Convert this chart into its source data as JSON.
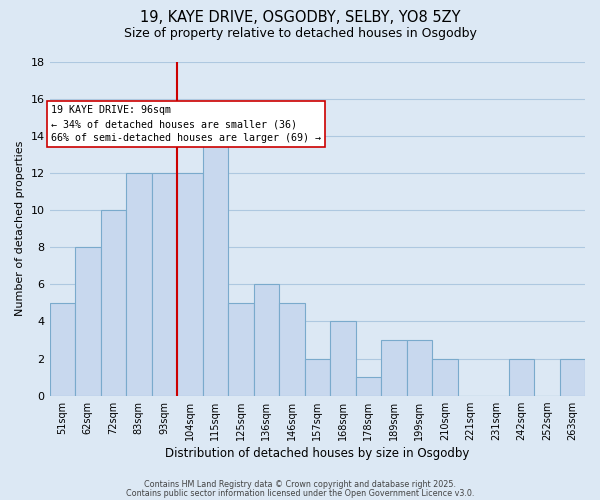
{
  "title": "19, KAYE DRIVE, OSGODBY, SELBY, YO8 5ZY",
  "subtitle": "Size of property relative to detached houses in Osgodby",
  "xlabel": "Distribution of detached houses by size in Osgodby",
  "ylabel": "Number of detached properties",
  "bar_color": "#c8d8ee",
  "bar_edge_color": "#7aaacc",
  "background_color": "#dce8f4",
  "grid_color": "#aec8e0",
  "categories": [
    "51sqm",
    "62sqm",
    "72sqm",
    "83sqm",
    "93sqm",
    "104sqm",
    "115sqm",
    "125sqm",
    "136sqm",
    "146sqm",
    "157sqm",
    "168sqm",
    "178sqm",
    "189sqm",
    "199sqm",
    "210sqm",
    "221sqm",
    "231sqm",
    "242sqm",
    "252sqm",
    "263sqm"
  ],
  "values": [
    5,
    8,
    10,
    12,
    12,
    12,
    14,
    5,
    6,
    5,
    2,
    4,
    1,
    3,
    3,
    2,
    0,
    0,
    2,
    0,
    2
  ],
  "ylim": [
    0,
    18
  ],
  "yticks": [
    0,
    2,
    4,
    6,
    8,
    10,
    12,
    14,
    16,
    18
  ],
  "vline_x": 4.5,
  "vline_color": "#cc0000",
  "annotation_title": "19 KAYE DRIVE: 96sqm",
  "annotation_line1": "← 34% of detached houses are smaller (36)",
  "annotation_line2": "66% of semi-detached houses are larger (69) →",
  "footer1": "Contains HM Land Registry data © Crown copyright and database right 2025.",
  "footer2": "Contains public sector information licensed under the Open Government Licence v3.0."
}
